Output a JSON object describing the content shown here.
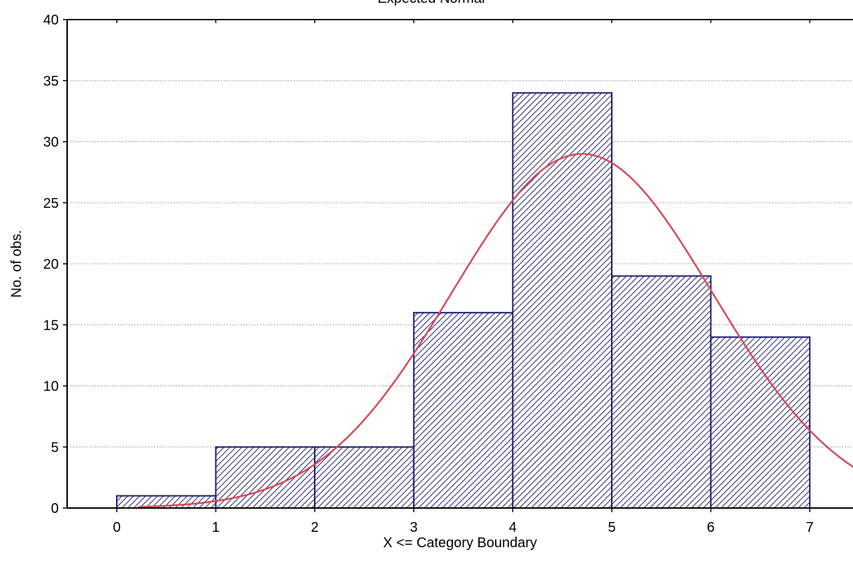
{
  "chart_data": {
    "type": "bar",
    "subtype": "histogram",
    "xlabel": "X <= Category Boundary",
    "ylabel": "No. of obs.",
    "xlim": [
      -0.5,
      7.45
    ],
    "ylim": [
      0,
      40
    ],
    "x_ticks": [
      0,
      1,
      2,
      3,
      4,
      5,
      6,
      7
    ],
    "y_ticks": [
      0,
      5,
      10,
      15,
      20,
      25,
      30,
      35,
      40
    ],
    "grid": "horizontal dashed",
    "bins": [
      {
        "from": 0,
        "to": 1,
        "count": 1
      },
      {
        "from": 1,
        "to": 2,
        "count": 5
      },
      {
        "from": 2,
        "to": 3,
        "count": 5
      },
      {
        "from": 3,
        "to": 4,
        "count": 16
      },
      {
        "from": 4,
        "to": 5,
        "count": 34
      },
      {
        "from": 5,
        "to": 6,
        "count": 19
      },
      {
        "from": 6,
        "to": 7,
        "count": 14
      }
    ],
    "bar_style": "diagonal hatch",
    "series": [
      {
        "name": "Expected Normal",
        "type": "line",
        "mean": 4.7,
        "peak": 29,
        "sd": 1.32,
        "x_start": 0.22
      }
    ],
    "legend": {
      "position": "top-center",
      "label": "Expected Normal"
    },
    "colors": {
      "bar_fill": "#ffffff",
      "bar_hatch": "#1c1c6e",
      "bar_edge": "#1c1c6e",
      "curve": "#d64a5a",
      "grid": "#a0a0a0",
      "axis": "#000000"
    }
  }
}
